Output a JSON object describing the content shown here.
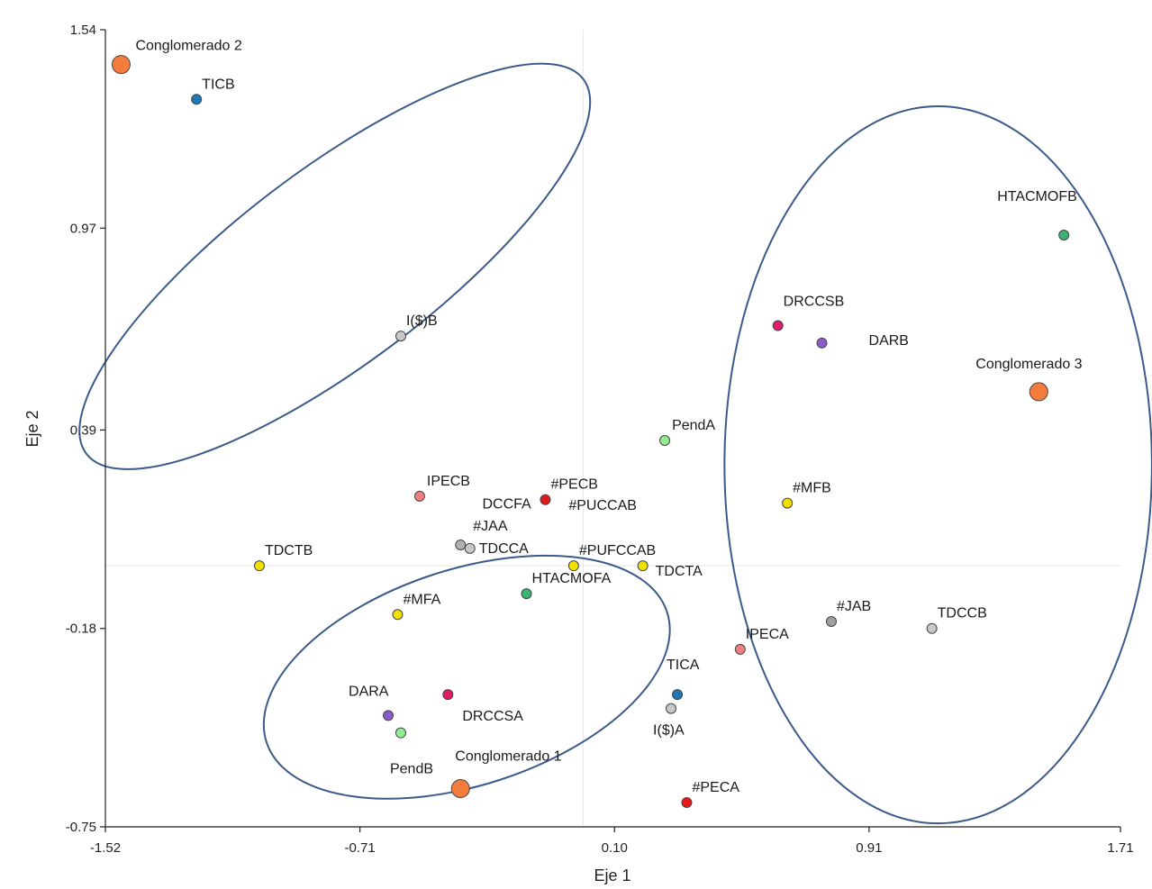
{
  "chart_data": {
    "type": "scatter",
    "xlabel": "Eje 1",
    "ylabel": "Eje 2",
    "xlim": [
      -1.52,
      1.71
    ],
    "ylim": [
      -0.75,
      1.54
    ],
    "x_ticks": [
      "-1.52",
      "-0.71",
      "0.10",
      "0.91",
      "1.71"
    ],
    "y_ticks": [
      "-0.75",
      "-0.18",
      "0.39",
      "0.97",
      "1.54"
    ],
    "grid": false,
    "reference_lines": {
      "x": 0.0,
      "y": 0.0
    },
    "points": [
      {
        "label": "Conglomerado 2",
        "x": -1.47,
        "y": 1.44,
        "color": "#f47c3c",
        "kind": "centroid"
      },
      {
        "label": "TICB",
        "x": -1.23,
        "y": 1.34,
        "color": "#1f77b4"
      },
      {
        "label": "HTACMOFB",
        "x": 1.53,
        "y": 0.95,
        "color": "#3cb371"
      },
      {
        "label": "I($)B",
        "x": -0.58,
        "y": 0.66,
        "color": "#c8c8c8"
      },
      {
        "label": "DRCCSB",
        "x": 0.62,
        "y": 0.69,
        "color": "#e6196b"
      },
      {
        "label": "DARB",
        "x": 0.76,
        "y": 0.64,
        "color": "#8a5cc7"
      },
      {
        "label": "Conglomerado 3",
        "x": 1.45,
        "y": 0.5,
        "color": "#f47c3c",
        "kind": "centroid"
      },
      {
        "label": "PendA",
        "x": 0.26,
        "y": 0.36,
        "color": "#90ee90"
      },
      {
        "label": "IPECB",
        "x": -0.52,
        "y": 0.2,
        "color": "#f08080"
      },
      {
        "label": "#PECB",
        "x": -0.12,
        "y": 0.19,
        "color": "#e31a1c"
      },
      {
        "label": "DCCFA",
        "x": -0.12,
        "y": 0.19,
        "color": "#e31a1c",
        "kind": "label-only"
      },
      {
        "label": "#MFB",
        "x": 0.65,
        "y": 0.18,
        "color": "#f0e000"
      },
      {
        "label": "#PUCCAB",
        "x": 0.0,
        "y": 0.14,
        "color": "#f0e000",
        "kind": "label-only"
      },
      {
        "label": "#JAA",
        "x": -0.39,
        "y": 0.06,
        "color": "#b0b0b0"
      },
      {
        "label": "TDCCA",
        "x": -0.36,
        "y": 0.05,
        "color": "#c8c8c8"
      },
      {
        "label": "TDCTB",
        "x": -1.03,
        "y": 0.0,
        "color": "#f0e000"
      },
      {
        "label": "#PUFCCAB",
        "x": -0.03,
        "y": 0.0,
        "color": "#f0e000"
      },
      {
        "label": "TDCTA",
        "x": 0.19,
        "y": 0.0,
        "color": "#f0e000"
      },
      {
        "label": "HTACMOFA",
        "x": -0.18,
        "y": -0.08,
        "color": "#3cb371"
      },
      {
        "label": "#MFA",
        "x": -0.59,
        "y": -0.14,
        "color": "#f0e000"
      },
      {
        "label": "#JAB",
        "x": 0.79,
        "y": -0.16,
        "color": "#a0a0a0"
      },
      {
        "label": "TDCCB",
        "x": 1.11,
        "y": -0.18,
        "color": "#c8c8c8"
      },
      {
        "label": "IPECA",
        "x": 0.5,
        "y": -0.24,
        "color": "#f08080"
      },
      {
        "label": "TICA",
        "x": 0.3,
        "y": -0.37,
        "color": "#1f77b4"
      },
      {
        "label": "DRCCSA",
        "x": -0.43,
        "y": -0.37,
        "color": "#e6196b"
      },
      {
        "label": "I($)A",
        "x": 0.28,
        "y": -0.41,
        "color": "#c8c8c8"
      },
      {
        "label": "DARA",
        "x": -0.62,
        "y": -0.43,
        "color": "#8a5cc7"
      },
      {
        "label": "PendB",
        "x": -0.58,
        "y": -0.48,
        "color": "#90ee90"
      },
      {
        "label": "Conglomerado 1",
        "x": -0.39,
        "y": -0.64,
        "color": "#f47c3c",
        "kind": "centroid"
      },
      {
        "label": "#PECA",
        "x": 0.33,
        "y": -0.68,
        "color": "#e31a1c"
      }
    ],
    "cluster_ellipses": [
      {
        "cx": -0.79,
        "cy": 0.86,
        "rx": 0.99,
        "ry": 0.28,
        "angle_deg": -37
      },
      {
        "cx": -0.37,
        "cy": -0.32,
        "rx": 0.67,
        "ry": 0.31,
        "angle_deg": -18
      },
      {
        "cx": 1.13,
        "cy": 0.29,
        "rx": 0.68,
        "ry": 1.03,
        "angle_deg": 0
      }
    ],
    "ellipse_color": "#3b5a8a"
  }
}
